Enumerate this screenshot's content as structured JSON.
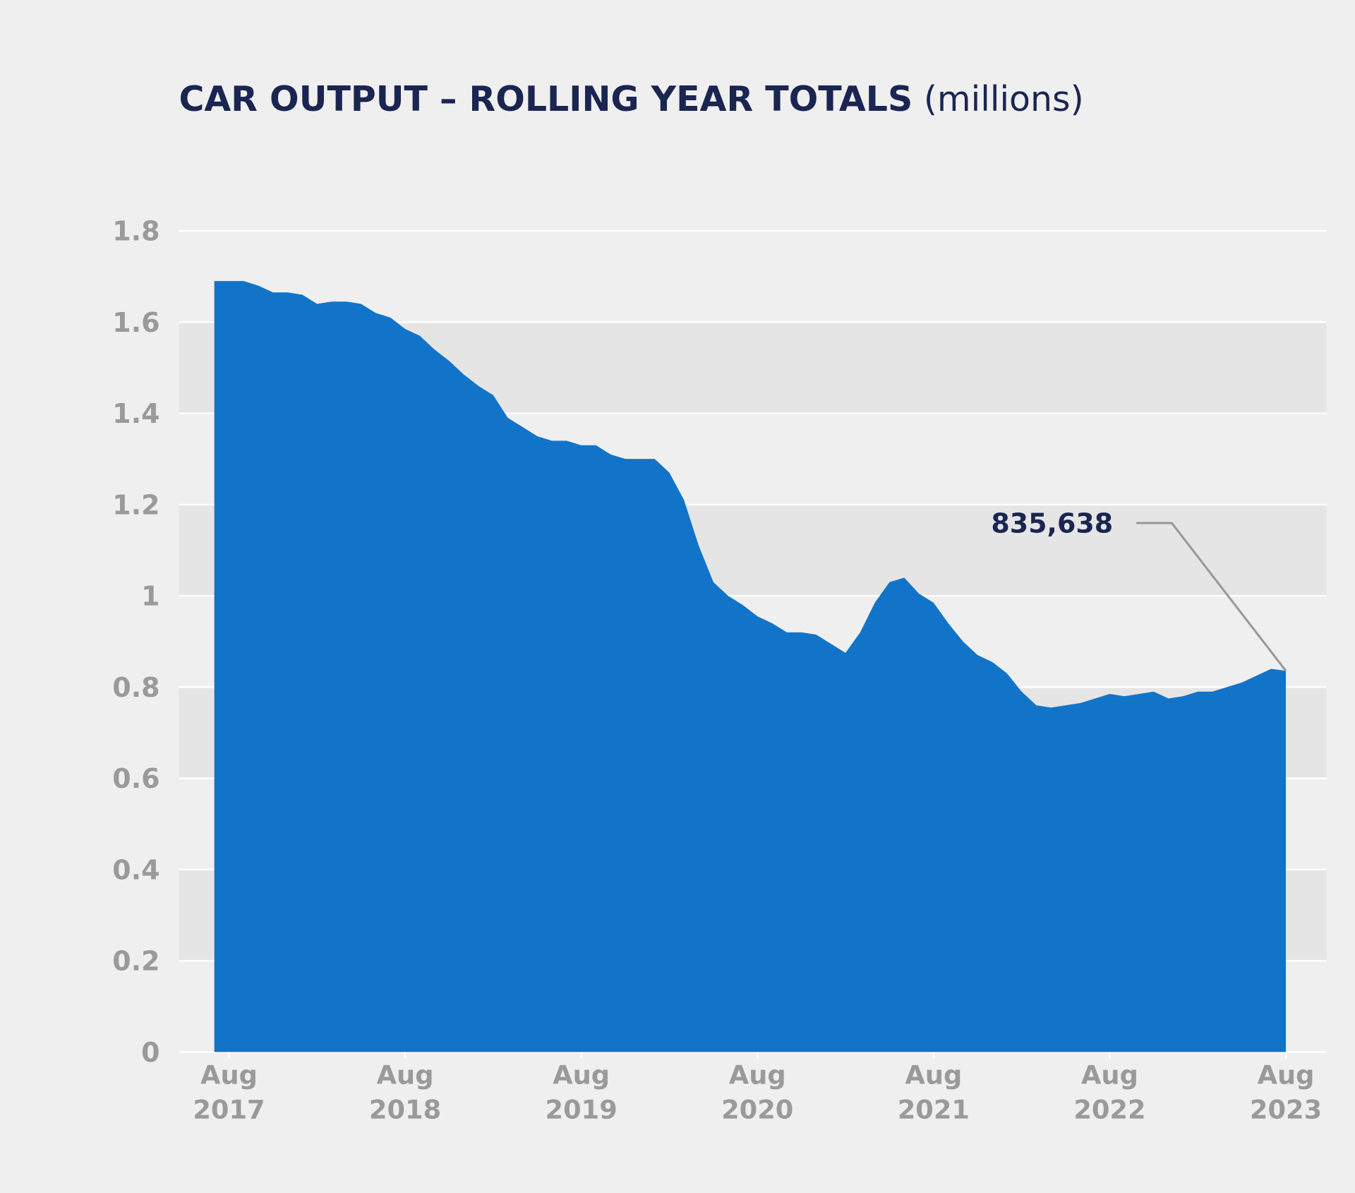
{
  "chart_data": {
    "type": "area",
    "title": "CAR OUTPUT – ROLLING YEAR TOTALS",
    "unit": "(millions)",
    "categories": [
      null,
      "Aug 2017",
      null,
      null,
      null,
      null,
      null,
      null,
      null,
      null,
      null,
      null,
      null,
      "Aug 2018",
      null,
      null,
      null,
      null,
      null,
      null,
      null,
      null,
      null,
      null,
      null,
      "Aug 2019",
      null,
      null,
      null,
      null,
      null,
      null,
      null,
      null,
      null,
      null,
      null,
      "Aug 2020",
      null,
      null,
      null,
      null,
      null,
      null,
      null,
      null,
      null,
      null,
      null,
      "Aug 2021",
      null,
      null,
      null,
      null,
      null,
      null,
      null,
      null,
      null,
      null,
      null,
      "Aug 2022",
      null,
      null,
      null,
      null,
      null,
      null,
      null,
      null,
      null,
      null,
      null,
      "Aug 2023"
    ],
    "values": [
      1.69,
      1.69,
      1.69,
      1.68,
      1.665,
      1.665,
      1.66,
      1.64,
      1.645,
      1.645,
      1.64,
      1.62,
      1.61,
      1.585,
      1.57,
      1.54,
      1.515,
      1.485,
      1.46,
      1.44,
      1.39,
      1.37,
      1.35,
      1.34,
      1.34,
      1.33,
      1.33,
      1.31,
      1.3,
      1.3,
      1.3,
      1.27,
      1.21,
      1.11,
      1.03,
      1.0,
      0.98,
      0.955,
      0.94,
      0.92,
      0.92,
      0.915,
      0.895,
      0.875,
      0.92,
      0.985,
      1.03,
      1.04,
      1.005,
      0.985,
      0.94,
      0.9,
      0.87,
      0.855,
      0.83,
      0.79,
      0.76,
      0.755,
      0.76,
      0.765,
      0.775,
      0.785,
      0.78,
      0.785,
      0.79,
      0.775,
      0.78,
      0.79,
      0.79,
      0.8,
      0.81,
      0.825,
      0.84,
      0.835638
    ],
    "value_labels": [
      null,
      null,
      null,
      null,
      null,
      null,
      null,
      null,
      null,
      null,
      null,
      null,
      null,
      null,
      null,
      null,
      null,
      null,
      null,
      null,
      null,
      null,
      null,
      null,
      null,
      null,
      null,
      null,
      null,
      null,
      null,
      null,
      null,
      null,
      null,
      null,
      null,
      null,
      null,
      null,
      null,
      null,
      null,
      null,
      null,
      null,
      null,
      null,
      null,
      null,
      null,
      null,
      null,
      null,
      null,
      null,
      null,
      null,
      null,
      null,
      null,
      null,
      null,
      null,
      null,
      null,
      null,
      null,
      null,
      null,
      null,
      null,
      null,
      "835,638"
    ],
    "color": "#1174c9",
    "ylim": [
      0,
      1.8
    ],
    "yticks": [
      0,
      0.2,
      0.4,
      0.6,
      0.8,
      1,
      1.2,
      1.4,
      1.6,
      1.8
    ],
    "grid": true
  }
}
